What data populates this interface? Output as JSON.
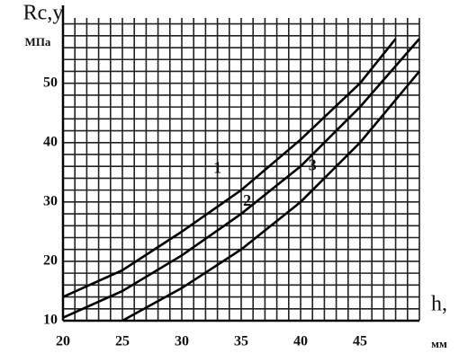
{
  "chart_data": {
    "type": "line",
    "y_label": "Rс,у",
    "y_unit": "МПа",
    "x_label": "h,",
    "x_unit": "мм",
    "xlim": [
      20,
      50
    ],
    "ylim": [
      10,
      61
    ],
    "xticks": [
      20,
      25,
      30,
      35,
      40,
      45
    ],
    "yticks": [
      10,
      20,
      30,
      40,
      50
    ],
    "xminorticks": [
      21,
      22,
      23,
      24,
      26,
      27,
      28,
      29,
      31,
      32,
      33,
      34,
      36,
      37,
      38,
      39,
      41,
      42,
      43,
      44,
      46,
      47,
      48,
      49,
      50
    ],
    "yminorticks": [
      12,
      14,
      16,
      18,
      22,
      24,
      26,
      28,
      32,
      34,
      36,
      38,
      42,
      44,
      46,
      48,
      52,
      54,
      56,
      58,
      60
    ],
    "grid": true,
    "series": [
      {
        "name": "1",
        "color": "#000000",
        "x": [
          20,
          25,
          30,
          35,
          40,
          45,
          48
        ],
        "values": [
          14,
          18.5,
          25,
          32,
          40.5,
          50,
          57.5
        ]
      },
      {
        "name": "2",
        "color": "#000000",
        "x": [
          20,
          25,
          30,
          35,
          40,
          45,
          50
        ],
        "values": [
          10.5,
          15,
          21,
          28,
          36,
          46,
          57.5
        ]
      },
      {
        "name": "3",
        "color": "#000000",
        "x": [
          25,
          30,
          35,
          40,
          45,
          50
        ],
        "values": [
          10,
          15.5,
          22,
          30,
          40,
          52
        ]
      }
    ]
  }
}
